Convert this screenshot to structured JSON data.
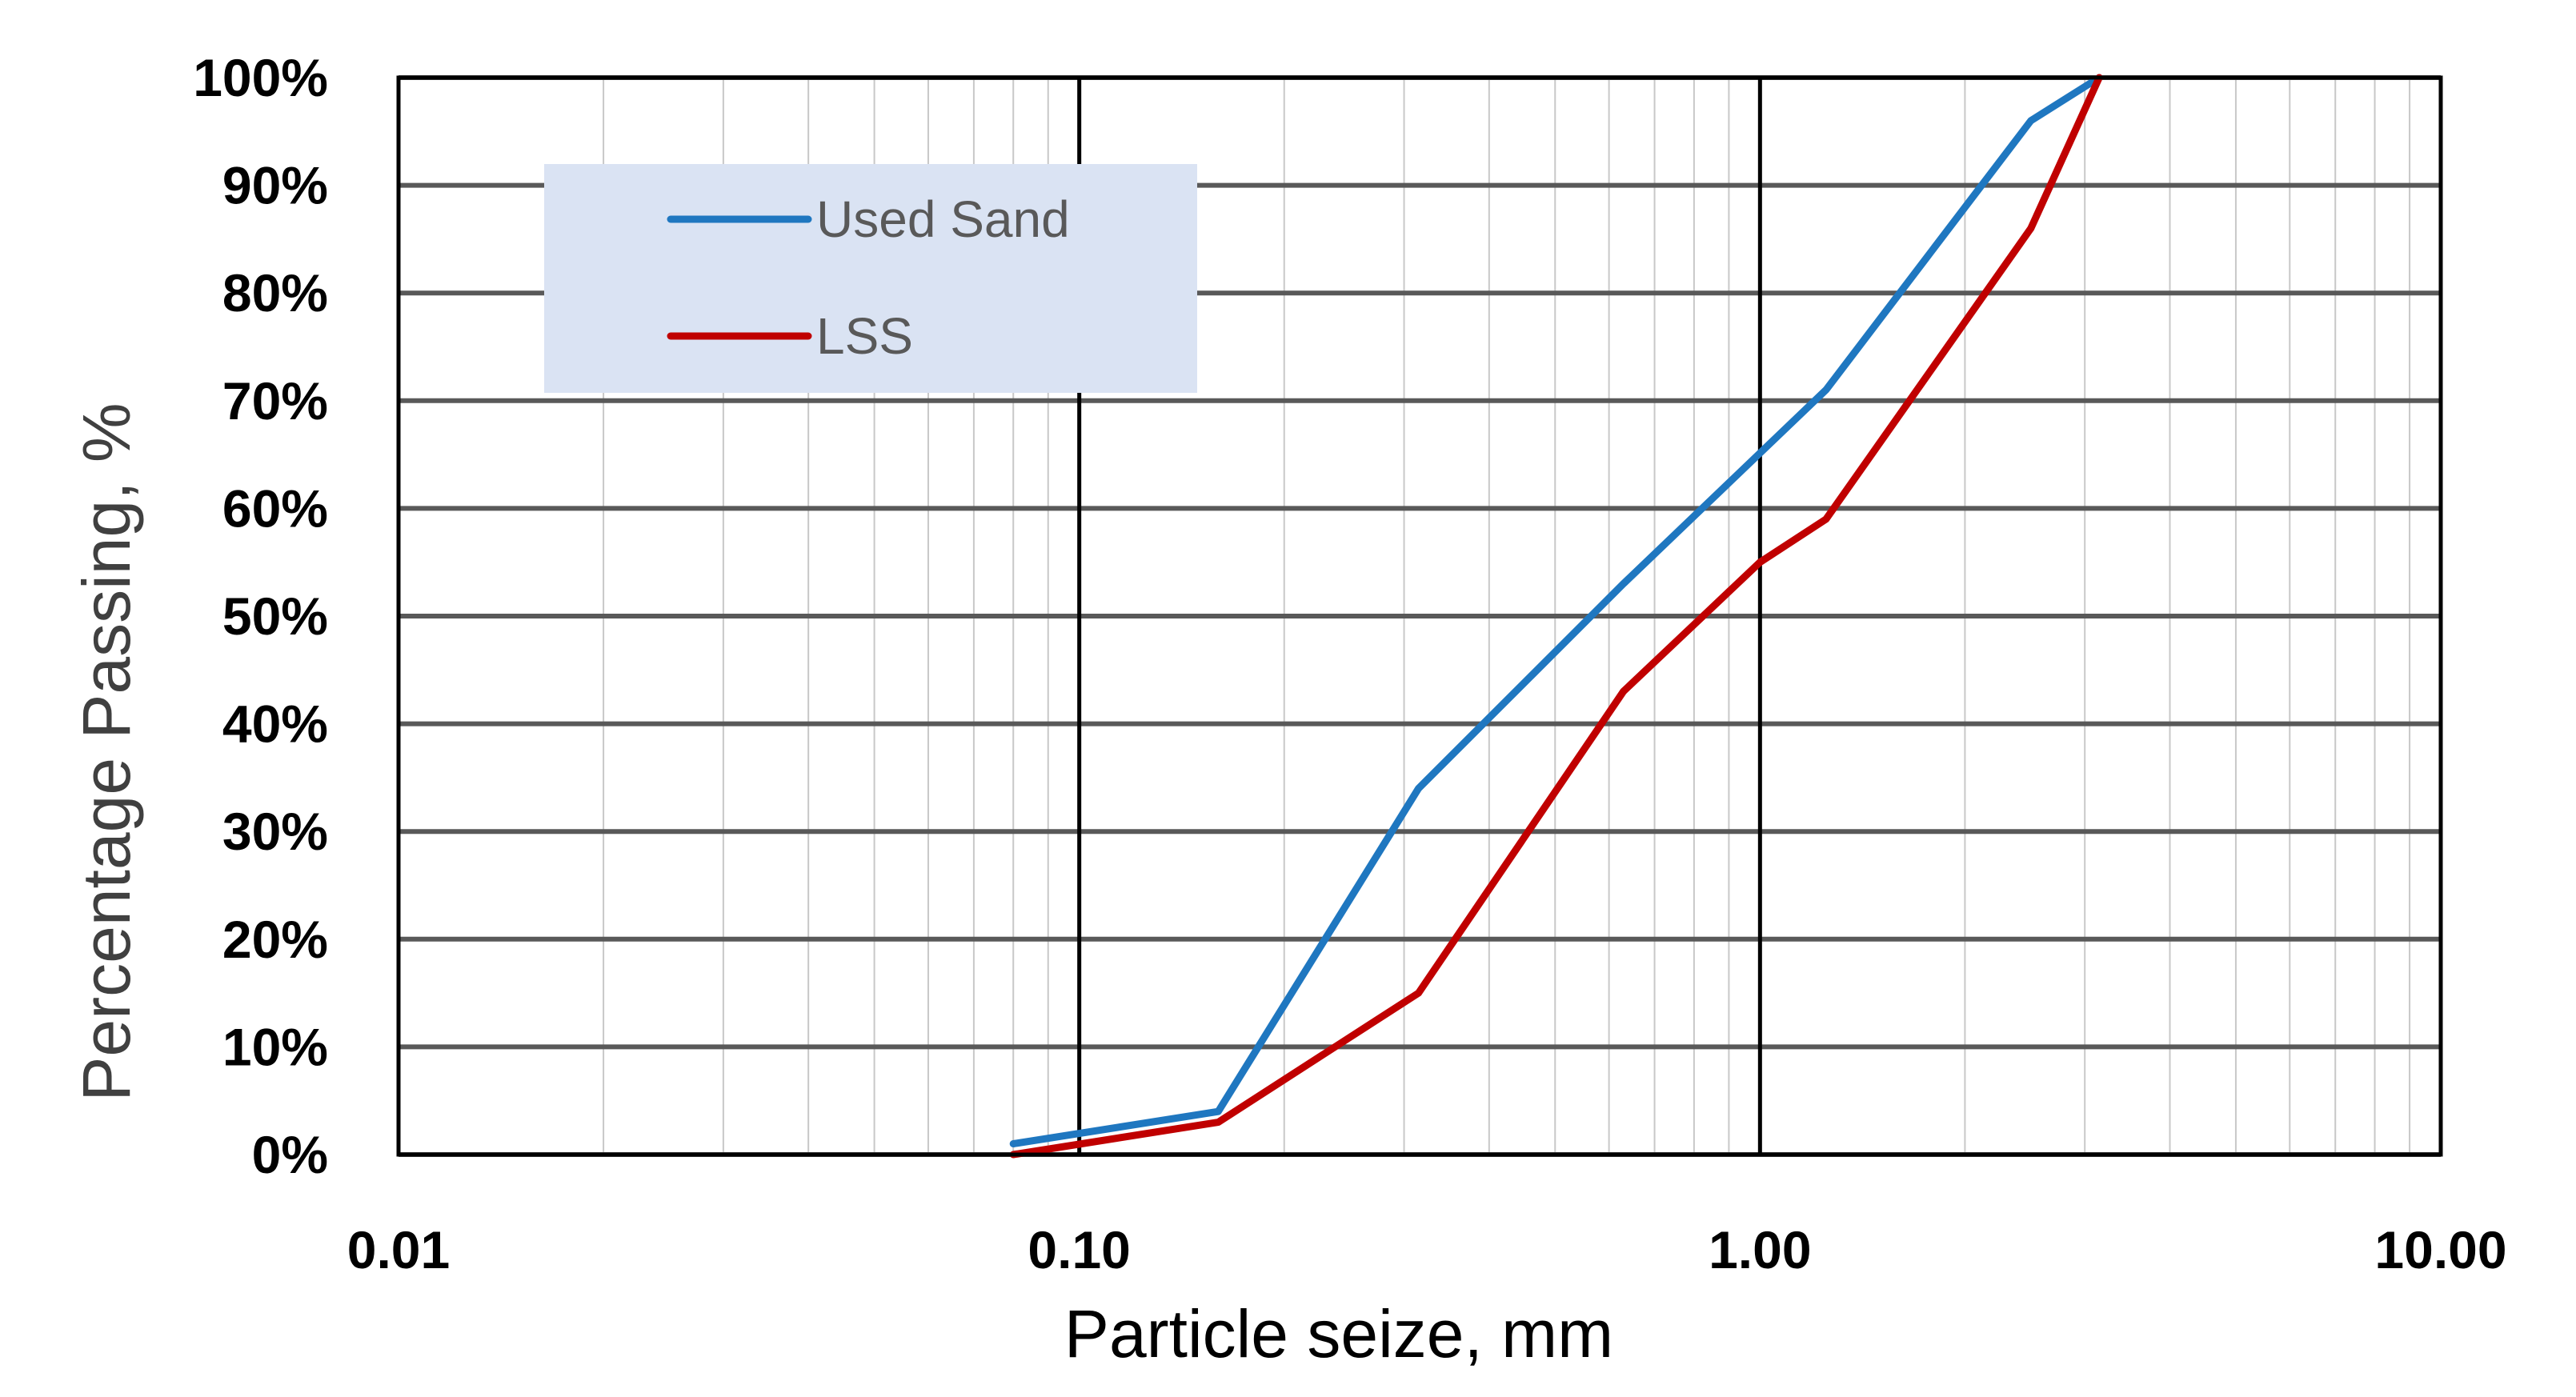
{
  "chart_data": {
    "type": "line",
    "title": "",
    "xlabel": "Particle  seize, mm",
    "ylabel": "Percentage  Passing, %",
    "x_scale": "log",
    "xlim": [
      0.01,
      10
    ],
    "ylim": [
      0,
      100
    ],
    "x_ticks": [
      "0.01",
      "0.10",
      "1.00",
      "10.00"
    ],
    "y_ticks": [
      "0%",
      "10%",
      "20%",
      "30%",
      "40%",
      "50%",
      "60%",
      "70%",
      "80%",
      "90%",
      "100%"
    ],
    "grid": true,
    "legend_position": "top-left",
    "series": [
      {
        "name": "Used Sand",
        "color": "#1f77c0",
        "points": [
          [
            0.08,
            1
          ],
          [
            0.16,
            4
          ],
          [
            0.315,
            34
          ],
          [
            0.63,
            53
          ],
          [
            1.25,
            71
          ],
          [
            2.5,
            96
          ],
          [
            3.15,
            100
          ]
        ]
      },
      {
        "name": "LSS",
        "color": "#c00000",
        "points": [
          [
            0.08,
            0
          ],
          [
            0.16,
            3
          ],
          [
            0.315,
            15
          ],
          [
            0.63,
            43
          ],
          [
            1.0,
            55
          ],
          [
            1.25,
            59
          ],
          [
            2.5,
            86
          ],
          [
            3.15,
            100
          ]
        ]
      }
    ]
  }
}
